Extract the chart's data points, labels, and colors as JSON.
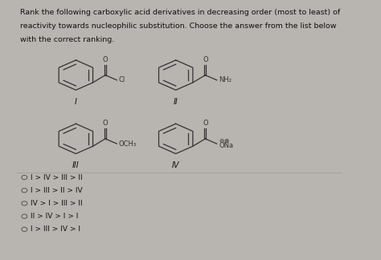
{
  "bg_color": "#b8b4b0",
  "panel_color": "#dddad6",
  "title_lines": [
    "Rank the following carboxylic acid derivatives in decreasing order (most to least) of",
    "reactivity towards nucleophilic substitution. Choose the answer from the list below",
    "with the correct ranking."
  ],
  "title_fontsize": 6.8,
  "answer_options": [
    "I > IV > III > II",
    "I > III > II > IV",
    "IV > I > III > II",
    "II > IV > I > I",
    "I > III > IV > I"
  ],
  "answer_fontsize": 6.5,
  "text_color": "#111111",
  "divider_color": "#999999",
  "struct_color": "#333333"
}
